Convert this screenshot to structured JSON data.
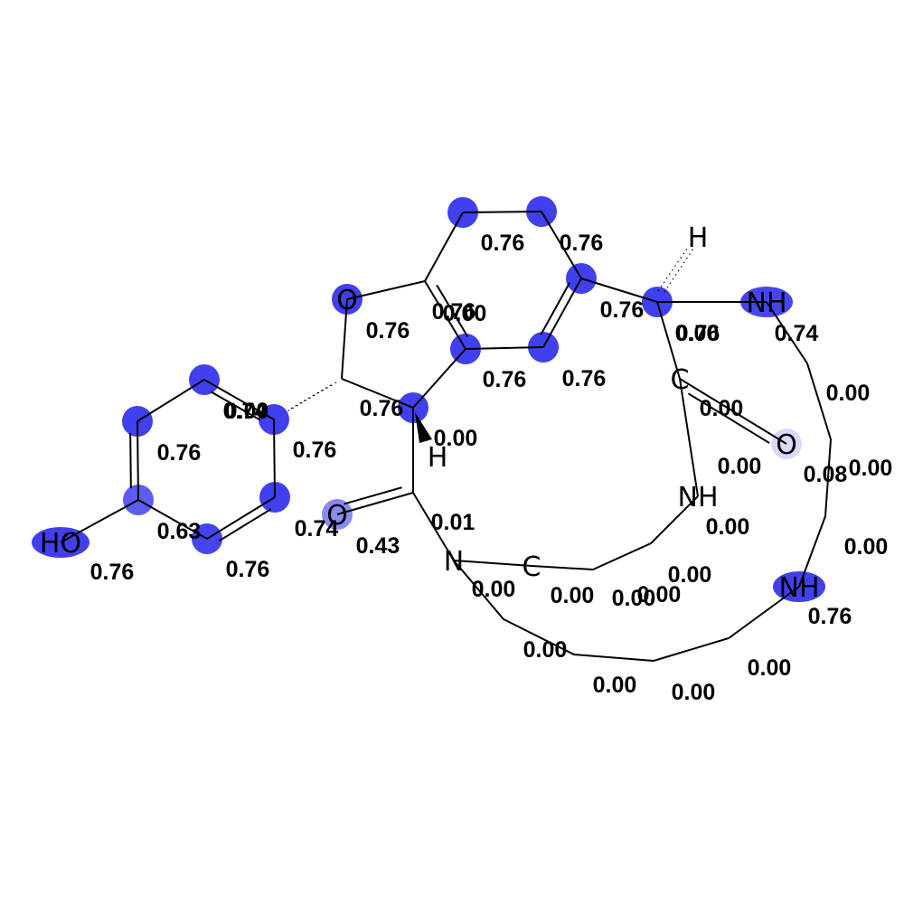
{
  "colors": {
    "highlight": "#3333ee",
    "background": "#ffffff",
    "bond": "#000000"
  },
  "atoms": [
    {
      "id": "a1",
      "label": "",
      "intensity": 0.76
    },
    {
      "id": "a2",
      "label": "",
      "intensity": 0.76
    },
    {
      "id": "a3",
      "label": "",
      "intensity": 0.76
    },
    {
      "id": "a4",
      "label": "",
      "intensity": 0.76
    },
    {
      "id": "a5",
      "label": "",
      "intensity": 0.76
    },
    {
      "id": "a6",
      "label": "",
      "intensity": 0.0
    },
    {
      "id": "a7",
      "label": "O",
      "intensity": 0.76
    },
    {
      "id": "a8",
      "label": "",
      "intensity": 0.0
    },
    {
      "id": "a9",
      "label": "",
      "intensity": 0.76
    },
    {
      "id": "a10",
      "label": "H",
      "intensity": 0.0
    },
    {
      "id": "a11",
      "label": "",
      "intensity": 0.76
    },
    {
      "id": "a12",
      "label": "H",
      "intensity": 0.0
    },
    {
      "id": "a13",
      "label": "NH",
      "intensity": 0.74
    },
    {
      "id": "a14",
      "label": "C",
      "intensity": 0.0
    },
    {
      "id": "a15",
      "label": "O",
      "intensity": 0.08
    },
    {
      "id": "a16",
      "label": "NH",
      "intensity": 0.0
    },
    {
      "id": "a17",
      "label": "NH",
      "intensity": 0.76
    },
    {
      "id": "a18",
      "label": "",
      "intensity": 0.76
    },
    {
      "id": "a19",
      "label": "",
      "intensity": 0.76
    },
    {
      "id": "a20",
      "label": "",
      "intensity": 0.76
    },
    {
      "id": "a21",
      "label": "",
      "intensity": 0.63
    },
    {
      "id": "a22",
      "label": "",
      "intensity": 0.76
    },
    {
      "id": "a23",
      "label": "",
      "intensity": 0.74
    },
    {
      "id": "a24",
      "label": "HO",
      "intensity": 0.76
    },
    {
      "id": "a25",
      "label": "O",
      "intensity": 0.43
    },
    {
      "id": "a26",
      "label": "",
      "intensity": 0.01
    },
    {
      "id": "a27",
      "label": "N",
      "intensity": 0.0
    },
    {
      "id": "a28",
      "label": "C",
      "intensity": 0.0
    }
  ],
  "score_labels": [
    "0.76",
    "0.76",
    "0.76",
    "0.76",
    "0.76",
    "0.00",
    "0.76",
    "0.76",
    "0.74",
    "0.00",
    "0.00",
    "0.00",
    "0.08",
    "0.00",
    "0.00",
    "0.00",
    "0.00",
    "0.76",
    "0.00",
    "0.00",
    "0.00",
    "0.00",
    "0.00",
    "0.00",
    "0.00",
    "0.00",
    "0.00",
    "0.00",
    "0.01",
    "0.43",
    "0.74",
    "0.00",
    "0.76",
    "0.76",
    "0.74",
    "0.76",
    "0.76",
    "0.63",
    "0.76",
    "0.76"
  ]
}
